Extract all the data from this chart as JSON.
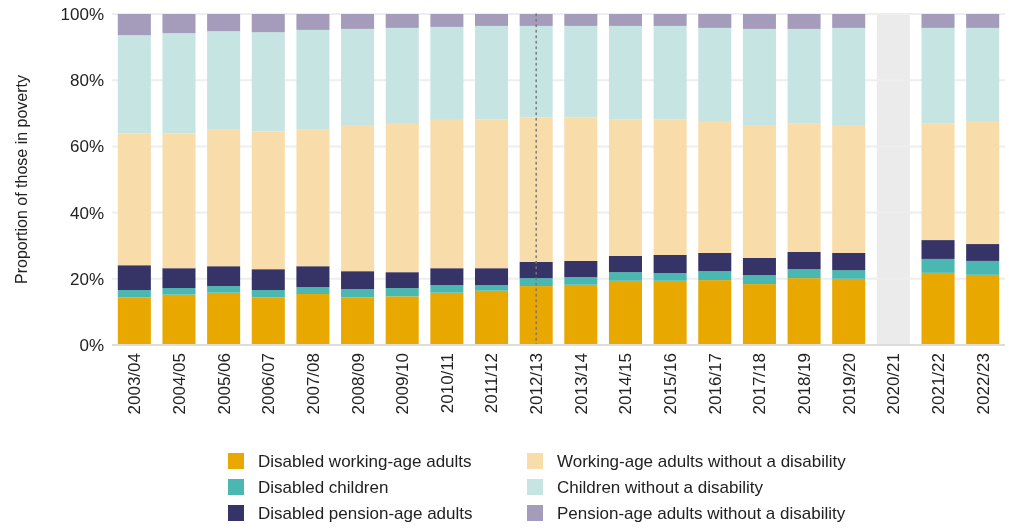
{
  "chart_data": {
    "type": "bar",
    "stacked": true,
    "ylabel": "Proportion of those in poverty",
    "categories": [
      "2003/04",
      "2004/05",
      "2005/06",
      "2006/07",
      "2007/08",
      "2008/09",
      "2009/10",
      "2010/11",
      "2011/12",
      "2012/13",
      "2013/14",
      "2014/15",
      "2015/16",
      "2016/17",
      "2017/18",
      "2018/19",
      "2019/20",
      "2020/21",
      "2021/22",
      "2022/23"
    ],
    "series": [
      {
        "name": "Disabled working-age adults",
        "color": "#e8a800",
        "values": [
          14.4,
          15.2,
          15.8,
          14.4,
          15.4,
          14.4,
          14.7,
          15.8,
          16.4,
          17.8,
          18.2,
          19.4,
          19.4,
          19.6,
          18.4,
          20.2,
          20.0,
          null,
          21.8,
          21.2
        ]
      },
      {
        "name": "Disabled children",
        "color": "#4ab8b1",
        "values": [
          2.2,
          2.0,
          2.0,
          2.2,
          2.1,
          2.5,
          2.5,
          2.3,
          1.7,
          2.4,
          2.3,
          2.6,
          2.3,
          2.7,
          2.7,
          2.7,
          2.6,
          null,
          4.2,
          4.2
        ]
      },
      {
        "name": "Disabled pension-age adults",
        "color": "#363366",
        "values": [
          7.5,
          6.0,
          6.0,
          6.3,
          6.3,
          5.4,
          4.8,
          5.1,
          5.1,
          4.9,
          4.9,
          4.9,
          5.5,
          5.5,
          5.2,
          5.2,
          5.2,
          null,
          5.7,
          5.1
        ]
      },
      {
        "name": "Working-age adults without a disability",
        "color": "#f8dcaa",
        "values": [
          39.8,
          40.7,
          41.4,
          41.6,
          41.4,
          43.9,
          44.8,
          44.8,
          45.0,
          43.7,
          43.4,
          41.3,
          41.0,
          39.6,
          39.9,
          38.9,
          38.4,
          null,
          35.3,
          36.9
        ]
      },
      {
        "name": "Children without a disability",
        "color": "#c6e4e2",
        "values": [
          29.7,
          30.3,
          29.6,
          30.0,
          30.0,
          29.3,
          29.0,
          28.1,
          28.2,
          27.6,
          27.6,
          28.2,
          28.2,
          28.4,
          29.3,
          28.5,
          29.6,
          null,
          28.8,
          28.4
        ]
      },
      {
        "name": "Pension-age adults without a disability",
        "color": "#a59bba",
        "values": [
          6.4,
          5.8,
          5.2,
          5.5,
          4.8,
          4.5,
          4.2,
          3.9,
          3.6,
          3.6,
          3.6,
          3.6,
          3.6,
          4.2,
          4.5,
          4.5,
          4.2,
          null,
          4.2,
          4.2
        ]
      }
    ],
    "ylim": [
      0,
      100
    ],
    "yticks": [
      {
        "value": 0,
        "label": "0%"
      },
      {
        "value": 20,
        "label": "20%"
      },
      {
        "value": 40,
        "label": "40%"
      },
      {
        "value": 60,
        "label": "60%"
      },
      {
        "value": 80,
        "label": "80%"
      },
      {
        "value": 100,
        "label": "100%"
      }
    ],
    "grid": "y",
    "legend": "bottom",
    "bands": [
      {
        "axis": "x",
        "from": "2020/21",
        "to": "2020/21",
        "color": "#ebebeb"
      }
    ],
    "ref_lines": [
      {
        "axis": "x",
        "value": "2012/13",
        "line_style": "dotted",
        "color": "#777777"
      }
    ]
  }
}
